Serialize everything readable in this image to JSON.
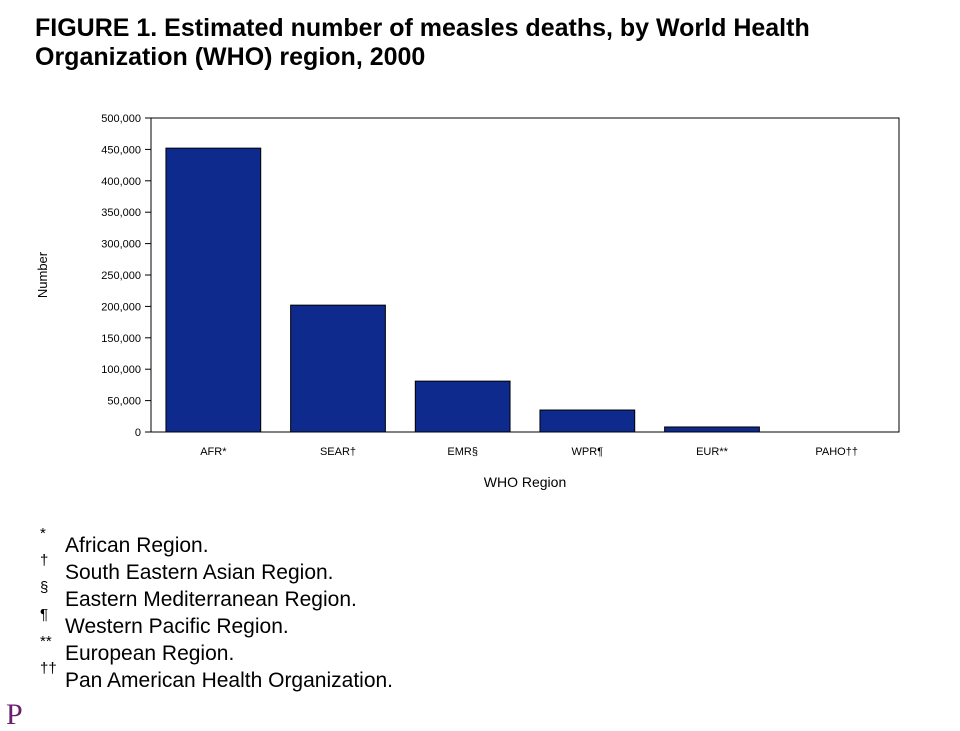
{
  "title": "FIGURE 1. Estimated number of measles deaths, by World Health Organization (WHO) region, 2000",
  "chart_data": {
    "type": "bar",
    "title": "",
    "xlabel": "WHO Region",
    "ylabel": "Number",
    "categories": [
      "AFR*",
      "SEAR†",
      "EMR§",
      "WPR¶",
      "EUR**",
      "PAHO††"
    ],
    "values": [
      452000,
      202000,
      81000,
      35000,
      8000,
      0
    ],
    "ylim": [
      0,
      500000
    ],
    "yticks": [
      "0",
      "50,000",
      "100,000",
      "150,000",
      "200,000",
      "250,000",
      "300,000",
      "350,000",
      "400,000",
      "450,000",
      "500,000"
    ],
    "grid": false,
    "bar_color": "#0d2a8c"
  },
  "footnotes": [
    {
      "mark": "*",
      "text": "African Region."
    },
    {
      "mark": "†",
      "text": "South Eastern Asian Region."
    },
    {
      "mark": "§",
      "text": "Eastern Mediterranean Region."
    },
    {
      "mark": "¶",
      "text": "Western Pacific Region."
    },
    {
      "mark": "**",
      "text": "European Region."
    },
    {
      "mark": "††",
      "text": "Pan American Health Organization."
    }
  ],
  "corner_glyph": "P"
}
